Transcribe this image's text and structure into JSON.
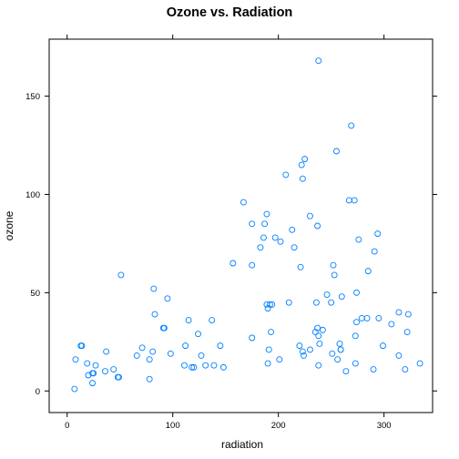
{
  "chart_data": {
    "type": "scatter",
    "title": "Ozone vs. Radiation",
    "xlabel": "radiation",
    "ylabel": "ozone",
    "xlim": [
      -17,
      346
    ],
    "ylim": [
      -11,
      179
    ],
    "xticks": [
      0,
      100,
      200,
      300
    ],
    "yticks": [
      0,
      50,
      100,
      150
    ],
    "grid": false,
    "point_color": "#0080ff",
    "series": [
      {
        "points": [
          [
            7,
            1
          ],
          [
            8,
            16
          ],
          [
            13,
            23
          ],
          [
            14,
            23
          ],
          [
            19,
            14
          ],
          [
            20,
            8
          ],
          [
            24,
            9
          ],
          [
            24,
            4
          ],
          [
            25,
            9
          ],
          [
            27,
            13
          ],
          [
            36,
            10
          ],
          [
            37,
            20
          ],
          [
            44,
            11
          ],
          [
            48,
            7
          ],
          [
            49,
            7
          ],
          [
            51,
            59
          ],
          [
            66,
            18
          ],
          [
            71,
            22
          ],
          [
            78,
            6
          ],
          [
            78,
            16
          ],
          [
            81,
            20
          ],
          [
            82,
            52
          ],
          [
            83,
            39
          ],
          [
            91,
            32
          ],
          [
            92,
            32
          ],
          [
            95,
            47
          ],
          [
            98,
            19
          ],
          [
            111,
            13
          ],
          [
            112,
            23
          ],
          [
            115,
            36
          ],
          [
            118,
            12
          ],
          [
            120,
            12
          ],
          [
            124,
            29
          ],
          [
            127,
            18
          ],
          [
            131,
            13
          ],
          [
            137,
            36
          ],
          [
            139,
            13
          ],
          [
            145,
            23
          ],
          [
            148,
            12
          ],
          [
            157,
            65
          ],
          [
            167,
            96
          ],
          [
            175,
            85
          ],
          [
            175,
            27
          ],
          [
            175,
            64
          ],
          [
            183,
            73
          ],
          [
            186,
            78
          ],
          [
            187,
            85
          ],
          [
            189,
            90
          ],
          [
            189,
            44
          ],
          [
            190,
            14
          ],
          [
            190,
            42
          ],
          [
            191,
            21
          ],
          [
            192,
            44
          ],
          [
            193,
            30
          ],
          [
            194,
            44
          ],
          [
            197,
            78
          ],
          [
            201,
            16
          ],
          [
            202,
            76
          ],
          [
            207,
            110
          ],
          [
            210,
            45
          ],
          [
            213,
            82
          ],
          [
            215,
            73
          ],
          [
            220,
            23
          ],
          [
            221,
            63
          ],
          [
            222,
            115
          ],
          [
            223,
            20
          ],
          [
            223,
            108
          ],
          [
            224,
            18
          ],
          [
            225,
            118
          ],
          [
            230,
            89
          ],
          [
            230,
            21
          ],
          [
            235,
            30
          ],
          [
            236,
            45
          ],
          [
            237,
            84
          ],
          [
            237,
            32
          ],
          [
            238,
            13
          ],
          [
            238,
            28
          ],
          [
            238,
            168
          ],
          [
            239,
            24
          ],
          [
            242,
            31
          ],
          [
            246,
            49
          ],
          [
            250,
            45
          ],
          [
            251,
            19
          ],
          [
            252,
            64
          ],
          [
            253,
            59
          ],
          [
            255,
            122
          ],
          [
            256,
            16
          ],
          [
            258,
            24
          ],
          [
            259,
            21
          ],
          [
            259,
            21
          ],
          [
            260,
            48
          ],
          [
            264,
            10
          ],
          [
            267,
            97
          ],
          [
            269,
            135
          ],
          [
            272,
            97
          ],
          [
            273,
            28
          ],
          [
            273,
            14
          ],
          [
            274,
            50
          ],
          [
            274,
            35
          ],
          [
            276,
            77
          ],
          [
            279,
            37
          ],
          [
            284,
            37
          ],
          [
            285,
            61
          ],
          [
            290,
            11
          ],
          [
            291,
            71
          ],
          [
            294,
            80
          ],
          [
            295,
            37
          ],
          [
            299,
            23
          ],
          [
            307,
            34
          ],
          [
            314,
            18
          ],
          [
            314,
            40
          ],
          [
            320,
            11
          ],
          [
            322,
            30
          ],
          [
            323,
            39
          ],
          [
            334,
            14
          ]
        ]
      }
    ]
  }
}
